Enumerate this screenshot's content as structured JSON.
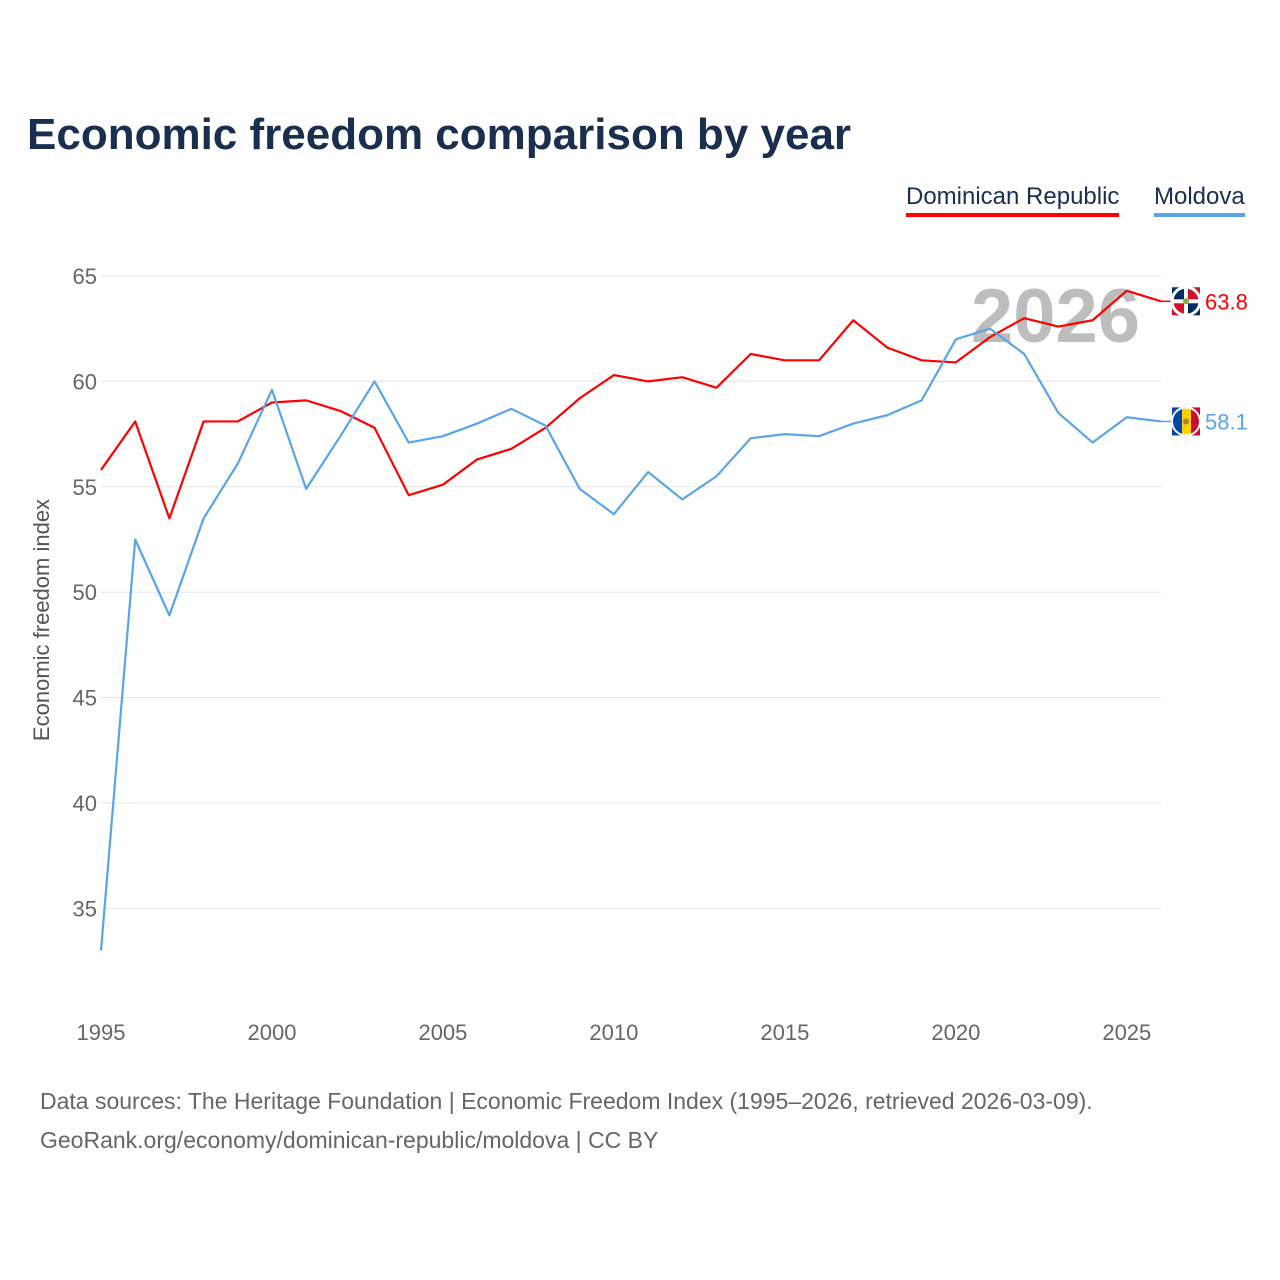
{
  "title": "Economic freedom comparison by year",
  "sources": {
    "line1": "Data sources: The Heritage Foundation | Economic Freedom Index (1995–2026, retrieved 2026-03-09).",
    "line2": "GeoRank.org/economy/dominican-republic/moldova | CC BY"
  },
  "chart_data": {
    "type": "line",
    "title": "Economic freedom comparison by year",
    "xlabel": "",
    "ylabel": "Economic freedom index",
    "xlim": [
      1995,
      2026
    ],
    "ylim": [
      31,
      67
    ],
    "yticks": [
      35,
      40,
      45,
      50,
      55,
      60,
      65
    ],
    "xticks": [
      1995,
      2000,
      2005,
      2010,
      2015,
      2020,
      2025
    ],
    "grid": true,
    "legend": "top-right",
    "year_watermark": "2026",
    "x": [
      1995,
      1996,
      1997,
      1998,
      1999,
      2000,
      2001,
      2002,
      2003,
      2004,
      2005,
      2006,
      2007,
      2008,
      2009,
      2010,
      2011,
      2012,
      2013,
      2014,
      2015,
      2016,
      2017,
      2018,
      2019,
      2020,
      2021,
      2022,
      2023,
      2024,
      2025,
      2026
    ],
    "series": [
      {
        "name": "Dominican Republic",
        "color": "#ff0000",
        "end_label": "63.8",
        "values": [
          55.8,
          58.1,
          53.5,
          58.1,
          58.1,
          59.0,
          59.1,
          58.6,
          57.8,
          54.6,
          55.1,
          56.3,
          56.8,
          57.8,
          59.2,
          60.3,
          60.0,
          60.2,
          59.7,
          61.3,
          61.0,
          61.0,
          62.9,
          61.6,
          61.0,
          60.9,
          62.1,
          63.0,
          62.6,
          62.9,
          64.3,
          63.8
        ]
      },
      {
        "name": "Moldova",
        "color": "#5aa5ea",
        "end_label": "58.1",
        "values": [
          33.0,
          52.5,
          48.9,
          53.5,
          56.1,
          59.6,
          54.9,
          57.4,
          60.0,
          57.1,
          57.4,
          58.0,
          58.7,
          57.9,
          54.9,
          53.7,
          55.7,
          54.4,
          55.5,
          57.3,
          57.5,
          57.4,
          58.0,
          58.4,
          59.1,
          62.0,
          62.5,
          61.3,
          58.5,
          57.1,
          58.3,
          58.1
        ]
      }
    ]
  }
}
